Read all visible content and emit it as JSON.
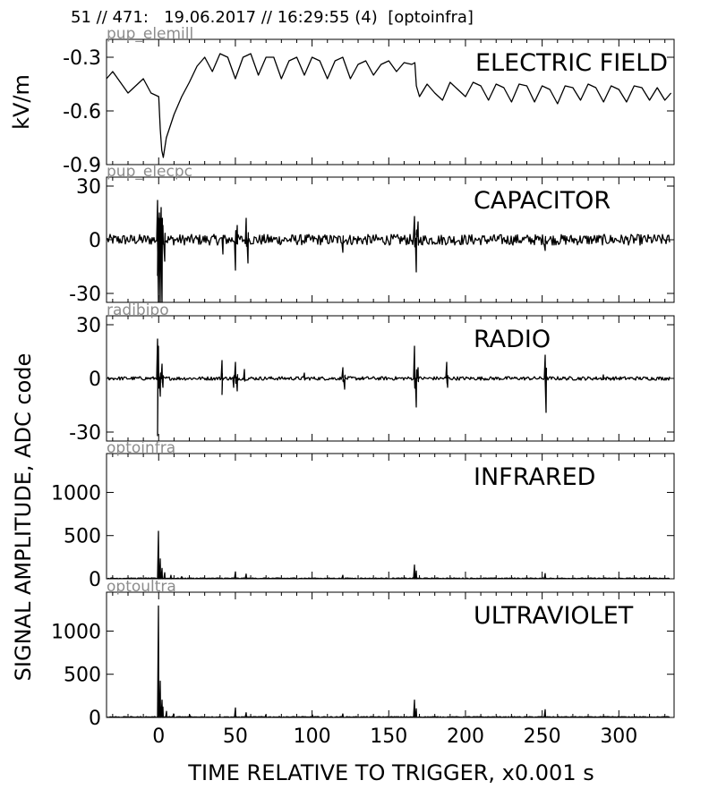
{
  "header": {
    "title": "51 // 471:   19.06.2017 // 16:29:55 (4)  [optoinfra]"
  },
  "chart_data": {
    "type": "line",
    "xlabel": "TIME RELATIVE TO TRIGGER,   x0.001 s",
    "xlim": [
      -34,
      336
    ],
    "xticks": [
      0,
      50,
      100,
      150,
      200,
      250,
      300
    ],
    "shared_ylabel": "SIGNAL AMPLITUDE,  ADC code",
    "panels": [
      {
        "name": "ELECTRIC FIELD",
        "channel": "pup_elemill",
        "ylabel": "kV/m",
        "ylim": [
          -0.9,
          -0.2
        ],
        "yticks": [
          -0.3,
          -0.6,
          -0.9
        ],
        "yticklabels": [
          "-0.3",
          "-0.6",
          "-0.9"
        ],
        "x": [
          -34,
          -30,
          -20,
          -10,
          -5,
          0,
          1,
          2,
          3,
          5,
          10,
          15,
          20,
          25,
          30,
          35,
          40,
          45,
          50,
          55,
          60,
          65,
          70,
          75,
          80,
          85,
          90,
          95,
          100,
          105,
          110,
          115,
          120,
          125,
          130,
          135,
          140,
          145,
          150,
          155,
          160,
          165,
          167,
          168,
          170,
          175,
          180,
          185,
          190,
          195,
          200,
          205,
          210,
          215,
          220,
          225,
          230,
          235,
          240,
          245,
          250,
          255,
          260,
          265,
          270,
          275,
          280,
          285,
          290,
          295,
          300,
          305,
          310,
          315,
          320,
          325,
          330,
          334
        ],
        "y": [
          -0.42,
          -0.38,
          -0.5,
          -0.42,
          -0.5,
          -0.52,
          -0.7,
          -0.82,
          -0.86,
          -0.75,
          -0.62,
          -0.52,
          -0.44,
          -0.35,
          -0.3,
          -0.38,
          -0.28,
          -0.3,
          -0.42,
          -0.3,
          -0.28,
          -0.4,
          -0.3,
          -0.3,
          -0.42,
          -0.32,
          -0.3,
          -0.4,
          -0.3,
          -0.32,
          -0.42,
          -0.32,
          -0.3,
          -0.42,
          -0.34,
          -0.32,
          -0.4,
          -0.34,
          -0.32,
          -0.38,
          -0.33,
          -0.34,
          -0.33,
          -0.46,
          -0.52,
          -0.45,
          -0.5,
          -0.54,
          -0.44,
          -0.48,
          -0.52,
          -0.44,
          -0.46,
          -0.54,
          -0.45,
          -0.47,
          -0.55,
          -0.45,
          -0.46,
          -0.55,
          -0.46,
          -0.48,
          -0.56,
          -0.46,
          -0.47,
          -0.54,
          -0.45,
          -0.47,
          -0.55,
          -0.46,
          -0.48,
          -0.55,
          -0.46,
          -0.47,
          -0.54,
          -0.47,
          -0.54,
          -0.5
        ]
      },
      {
        "name": "CAPACITOR",
        "channel": "pup_elecpc",
        "ylim": [
          -35,
          35
        ],
        "yticks": [
          30,
          0,
          -30
        ],
        "yticklabels": [
          "30",
          "0",
          "-30"
        ],
        "baseline": 0,
        "noise": 3,
        "spikes": [
          {
            "x": -1,
            "y": 22
          },
          {
            "x": -0.5,
            "y": -20
          },
          {
            "x": 0,
            "y": -40
          },
          {
            "x": 0.5,
            "y": 15
          },
          {
            "x": 1,
            "y": -40
          },
          {
            "x": 1.5,
            "y": 18
          },
          {
            "x": 2,
            "y": -40
          },
          {
            "x": 3,
            "y": 8
          },
          {
            "x": 4,
            "y": -12
          },
          {
            "x": 42,
            "y": -8
          },
          {
            "x": 50,
            "y": -17
          },
          {
            "x": 51,
            "y": 8
          },
          {
            "x": 57,
            "y": 12
          },
          {
            "x": 58,
            "y": -13
          },
          {
            "x": 120,
            "y": -7
          },
          {
            "x": 167,
            "y": 13
          },
          {
            "x": 168,
            "y": -18
          },
          {
            "x": 169,
            "y": 10
          },
          {
            "x": 252,
            "y": -6
          }
        ]
      },
      {
        "name": "RADIO",
        "channel": "radibipo",
        "ylim": [
          -35,
          35
        ],
        "yticks": [
          30,
          0,
          -30
        ],
        "yticklabels": [
          "30",
          "0",
          "-30"
        ],
        "baseline": 0,
        "noise": 1,
        "spikes": [
          {
            "x": -1,
            "y": 22
          },
          {
            "x": -0.5,
            "y": -32
          },
          {
            "x": 0,
            "y": 18
          },
          {
            "x": 1,
            "y": -10
          },
          {
            "x": 2,
            "y": 8
          },
          {
            "x": 3,
            "y": -5
          },
          {
            "x": 41,
            "y": 10
          },
          {
            "x": 41.5,
            "y": -9
          },
          {
            "x": 49,
            "y": -5
          },
          {
            "x": 50,
            "y": 9
          },
          {
            "x": 51,
            "y": -7
          },
          {
            "x": 56,
            "y": 5
          },
          {
            "x": 95,
            "y": 3
          },
          {
            "x": 120,
            "y": 6
          },
          {
            "x": 121,
            "y": -6
          },
          {
            "x": 167,
            "y": 18
          },
          {
            "x": 168,
            "y": -16
          },
          {
            "x": 169,
            "y": 6
          },
          {
            "x": 188,
            "y": 9
          },
          {
            "x": 188.5,
            "y": -5
          },
          {
            "x": 252,
            "y": 13
          },
          {
            "x": 252.5,
            "y": -19
          },
          {
            "x": 290,
            "y": 2
          }
        ]
      },
      {
        "name": "INFRARED",
        "channel": "optoinfra",
        "ylim": [
          0,
          1450
        ],
        "yticks": [
          1000,
          500,
          0
        ],
        "yticklabels": [
          "1000",
          "500",
          "0"
        ],
        "baseline": 5,
        "noise": 5,
        "spikes": [
          {
            "x": 0,
            "y": 550
          },
          {
            "x": 1,
            "y": 230
          },
          {
            "x": 2,
            "y": 120
          },
          {
            "x": 4,
            "y": 70
          },
          {
            "x": 8,
            "y": 40
          },
          {
            "x": 15,
            "y": 25
          },
          {
            "x": 50,
            "y": 80
          },
          {
            "x": 57,
            "y": 55
          },
          {
            "x": 120,
            "y": 40
          },
          {
            "x": 167,
            "y": 160
          },
          {
            "x": 168,
            "y": 90
          },
          {
            "x": 252,
            "y": 60
          }
        ]
      },
      {
        "name": "ULTRAVIOLET",
        "channel": "optoultra",
        "ylim": [
          0,
          1450
        ],
        "yticks": [
          1000,
          500,
          0
        ],
        "yticklabels": [
          "1000",
          "500",
          "0"
        ],
        "baseline": 5,
        "noise": 5,
        "spikes": [
          {
            "x": 0,
            "y": 1290
          },
          {
            "x": 1,
            "y": 420
          },
          {
            "x": 2,
            "y": 200
          },
          {
            "x": 3,
            "y": 120
          },
          {
            "x": 5,
            "y": 70
          },
          {
            "x": 10,
            "y": 40
          },
          {
            "x": 20,
            "y": 30
          },
          {
            "x": 50,
            "y": 110
          },
          {
            "x": 57,
            "y": 55
          },
          {
            "x": 70,
            "y": 30
          },
          {
            "x": 100,
            "y": 30
          },
          {
            "x": 120,
            "y": 40
          },
          {
            "x": 167,
            "y": 200
          },
          {
            "x": 168,
            "y": 100
          },
          {
            "x": 252,
            "y": 90
          }
        ]
      }
    ]
  }
}
